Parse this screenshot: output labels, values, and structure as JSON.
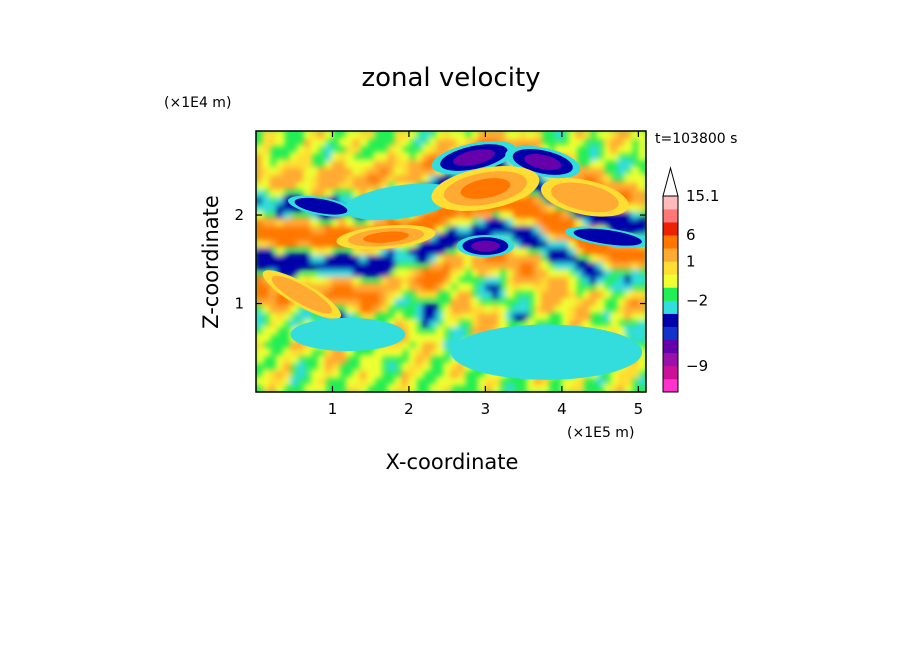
{
  "chart_data": {
    "type": "heatmap",
    "title": "zonal velocity",
    "xlabel": "X-coordinate",
    "ylabel": "Z-coordinate",
    "x_scale_label": "(×1E5 m)",
    "y_scale_label": "(×1E4 m)",
    "time_label": "t=103800 s",
    "xlim": [
      0,
      5.1
    ],
    "ylim": [
      0,
      2.95
    ],
    "x_ticks": [
      1,
      2,
      3,
      4,
      5
    ],
    "x_tick_labels": [
      "1",
      "2",
      "3",
      "4",
      "5"
    ],
    "y_ticks": [
      1,
      2
    ],
    "y_tick_labels": [
      "1",
      "2"
    ],
    "colorbar": {
      "colors": [
        "#ff33cc",
        "#cc1199",
        "#9911aa",
        "#6600aa",
        "#1133cc",
        "#0000aa",
        "#33dddd",
        "#22ee55",
        "#eeff33",
        "#ffdd33",
        "#ffaa33",
        "#ff7700",
        "#ee2200",
        "#ff7777",
        "#ffbbbb"
      ],
      "levels": [
        -12,
        -10.5,
        -9,
        -7.5,
        -6,
        -4.5,
        -3,
        -2,
        -0.5,
        0.5,
        1,
        3,
        6,
        9,
        12,
        15.1
      ],
      "labeled_levels": [
        15.1,
        6,
        1,
        -2,
        -9
      ],
      "labels": [
        "15.1",
        "6",
        "1",
        "−2",
        "−9"
      ],
      "extend": "max"
    },
    "features": [
      {
        "x": 2.85,
        "z": 2.65,
        "rx": 0.45,
        "rz": 0.13,
        "angle": -12,
        "value": -7
      },
      {
        "x": 3.75,
        "z": 2.6,
        "rx": 0.4,
        "rz": 0.13,
        "angle": 12,
        "value": -7
      },
      {
        "x": 1.9,
        "z": 2.15,
        "rx": 0.6,
        "rz": 0.15,
        "angle": -8,
        "value": -2.5
      },
      {
        "x": 0.85,
        "z": 2.1,
        "rx": 0.35,
        "rz": 0.08,
        "angle": 10,
        "value": -6
      },
      {
        "x": 3.0,
        "z": 1.65,
        "rx": 0.3,
        "rz": 0.1,
        "angle": 0,
        "value": -7
      },
      {
        "x": 4.6,
        "z": 1.75,
        "rx": 0.45,
        "rz": 0.08,
        "angle": 8,
        "value": -5
      },
      {
        "x": 3.0,
        "z": 2.3,
        "rx": 0.55,
        "rz": 0.18,
        "angle": -10,
        "value": 5
      },
      {
        "x": 1.7,
        "z": 1.75,
        "rx": 0.5,
        "rz": 0.1,
        "angle": -5,
        "value": 5
      },
      {
        "x": 4.3,
        "z": 2.2,
        "rx": 0.45,
        "rz": 0.15,
        "angle": 12,
        "value": 4
      },
      {
        "x": 0.6,
        "z": 1.1,
        "rx": 0.45,
        "rz": 0.1,
        "angle": 30,
        "value": 2.5
      },
      {
        "x": 3.8,
        "z": 0.45,
        "rx": 1.0,
        "rz": 0.25,
        "angle": 0,
        "value": -2.5
      },
      {
        "x": 4.8,
        "z": 0.5,
        "rx": 0.25,
        "rz": 0.3,
        "angle": 0,
        "value": 0.2
      },
      {
        "x": 1.2,
        "z": 0.65,
        "rx": 0.6,
        "rz": 0.15,
        "angle": 0,
        "value": -2.5
      }
    ]
  }
}
